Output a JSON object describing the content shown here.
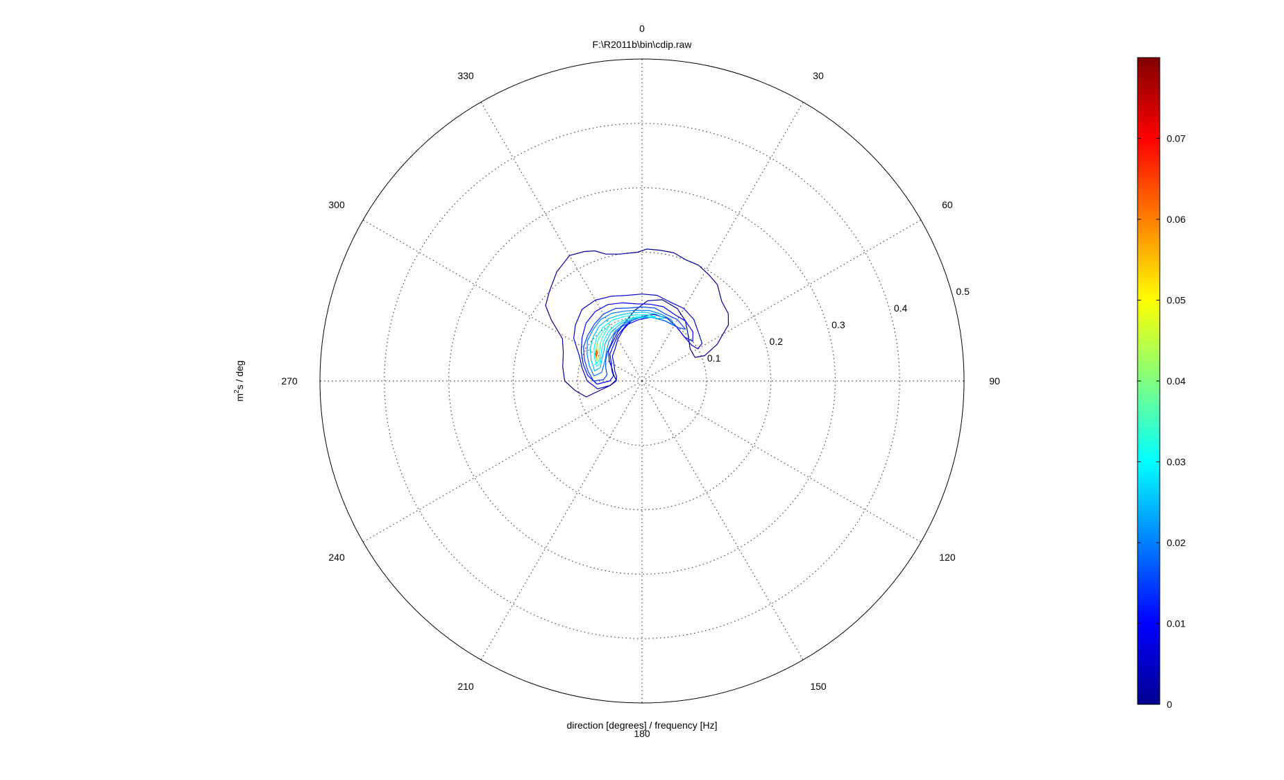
{
  "chart_data": {
    "type": "polar_contour",
    "title": "F:\\R2011b\\bin\\cdip.raw",
    "xlabel": "direction [degrees] / frequency [Hz]",
    "ylabel_base": "m",
    "ylabel_sup": "2",
    "ylabel_rest": "s / deg",
    "angle_labels": [
      "0",
      "30",
      "60",
      "90",
      "120",
      "150",
      "180",
      "210",
      "240",
      "270",
      "300",
      "330"
    ],
    "angle_ticks_deg": [
      0,
      30,
      60,
      90,
      120,
      150,
      180,
      210,
      240,
      270,
      300,
      330
    ],
    "radial_ticks": [
      0.1,
      0.2,
      0.3,
      0.4,
      0.5
    ],
    "radial_labels": [
      "0.1",
      "0.2",
      "0.3",
      "0.4",
      "0.5"
    ],
    "rlim": [
      0,
      0.5
    ],
    "angle_zero": "top",
    "angle_direction": "clockwise",
    "grid": true,
    "colorbar": {
      "ticks": [
        0,
        0.01,
        0.02,
        0.03,
        0.04,
        0.05,
        0.06,
        0.07
      ],
      "labels": [
        "0",
        "0.01",
        "0.02",
        "0.03",
        "0.04",
        "0.05",
        "0.06",
        "0.07"
      ],
      "range": [
        0,
        0.08
      ],
      "colormap": "jet",
      "placement": "right"
    },
    "contour_levels": [
      0.002,
      0.006,
      0.01,
      0.015,
      0.02,
      0.025,
      0.03,
      0.035,
      0.045,
      0.055,
      0.065
    ],
    "peak": {
      "direction_deg": 300,
      "frequency_hz": 0.085,
      "value": 0.079
    },
    "contours": [
      {
        "level": 0.002,
        "points": [
          [
            254,
            0.09
          ],
          [
            262,
            0.105
          ],
          [
            270,
            0.12
          ],
          [
            280,
            0.125
          ],
          [
            290,
            0.13
          ],
          [
            298,
            0.14
          ],
          [
            304,
            0.17
          ],
          [
            308,
            0.19
          ],
          [
            314,
            0.2
          ],
          [
            322,
            0.215
          ],
          [
            330,
            0.225
          ],
          [
            336,
            0.22
          ],
          [
            340,
            0.215
          ],
          [
            344,
            0.205
          ],
          [
            350,
            0.2
          ],
          [
            358,
            0.2
          ],
          [
            2,
            0.205
          ],
          [
            8,
            0.205
          ],
          [
            14,
            0.205
          ],
          [
            20,
            0.2
          ],
          [
            26,
            0.2
          ],
          [
            32,
            0.195
          ],
          [
            38,
            0.19
          ],
          [
            45,
            0.175
          ],
          [
            52,
            0.17
          ],
          [
            57,
            0.16
          ],
          [
            60,
            0.145
          ],
          [
            64,
            0.13
          ],
          [
            68,
            0.105
          ],
          [
            66,
            0.09
          ],
          [
            56,
            0.09
          ],
          [
            46,
            0.1
          ],
          [
            36,
            0.115
          ],
          [
            26,
            0.125
          ],
          [
            14,
            0.13
          ],
          [
            4,
            0.125
          ],
          [
            354,
            0.11
          ],
          [
            344,
            0.095
          ],
          [
            334,
            0.085
          ],
          [
            322,
            0.075
          ],
          [
            312,
            0.07
          ],
          [
            302,
            0.06
          ],
          [
            292,
            0.05
          ],
          [
            282,
            0.045
          ],
          [
            272,
            0.04
          ],
          [
            262,
            0.05
          ],
          [
            254,
            0.09
          ]
        ]
      },
      {
        "level": 0.006,
        "points": [
          [
            260,
            0.07
          ],
          [
            270,
            0.085
          ],
          [
            282,
            0.095
          ],
          [
            292,
            0.105
          ],
          [
            302,
            0.125
          ],
          [
            310,
            0.135
          ],
          [
            320,
            0.145
          ],
          [
            330,
            0.145
          ],
          [
            340,
            0.14
          ],
          [
            350,
            0.135
          ],
          [
            0,
            0.135
          ],
          [
            10,
            0.135
          ],
          [
            20,
            0.13
          ],
          [
            30,
            0.13
          ],
          [
            40,
            0.125
          ],
          [
            50,
            0.115
          ],
          [
            58,
            0.11
          ],
          [
            60,
            0.1
          ],
          [
            54,
            0.095
          ],
          [
            44,
            0.095
          ],
          [
            32,
            0.1
          ],
          [
            22,
            0.105
          ],
          [
            10,
            0.105
          ],
          [
            0,
            0.1
          ],
          [
            350,
            0.095
          ],
          [
            340,
            0.085
          ],
          [
            330,
            0.075
          ],
          [
            320,
            0.065
          ],
          [
            310,
            0.06
          ],
          [
            300,
            0.05
          ],
          [
            290,
            0.045
          ],
          [
            280,
            0.04
          ],
          [
            270,
            0.04
          ],
          [
            262,
            0.05
          ],
          [
            260,
            0.07
          ]
        ]
      },
      {
        "level": 0.01,
        "points": [
          [
            266,
            0.07
          ],
          [
            276,
            0.085
          ],
          [
            286,
            0.095
          ],
          [
            296,
            0.105
          ],
          [
            306,
            0.115
          ],
          [
            316,
            0.125
          ],
          [
            326,
            0.13
          ],
          [
            336,
            0.13
          ],
          [
            346,
            0.125
          ],
          [
            356,
            0.12
          ],
          [
            6,
            0.12
          ],
          [
            16,
            0.12
          ],
          [
            26,
            0.115
          ],
          [
            36,
            0.115
          ],
          [
            46,
            0.11
          ],
          [
            52,
            0.1
          ],
          [
            44,
            0.095
          ],
          [
            32,
            0.1
          ],
          [
            20,
            0.1
          ],
          [
            8,
            0.1
          ],
          [
            356,
            0.095
          ],
          [
            344,
            0.09
          ],
          [
            332,
            0.08
          ],
          [
            320,
            0.07
          ],
          [
            310,
            0.065
          ],
          [
            300,
            0.055
          ],
          [
            290,
            0.05
          ],
          [
            280,
            0.045
          ],
          [
            270,
            0.05
          ],
          [
            266,
            0.07
          ]
        ]
      },
      {
        "level": 0.015,
        "points": [
          [
            270,
            0.075
          ],
          [
            280,
            0.085
          ],
          [
            290,
            0.095
          ],
          [
            300,
            0.105
          ],
          [
            310,
            0.11
          ],
          [
            320,
            0.115
          ],
          [
            330,
            0.12
          ],
          [
            340,
            0.12
          ],
          [
            350,
            0.115
          ],
          [
            0,
            0.115
          ],
          [
            10,
            0.115
          ],
          [
            20,
            0.11
          ],
          [
            30,
            0.11
          ],
          [
            40,
            0.105
          ],
          [
            34,
            0.1
          ],
          [
            22,
            0.1
          ],
          [
            10,
            0.1
          ],
          [
            0,
            0.1
          ],
          [
            350,
            0.095
          ],
          [
            340,
            0.09
          ],
          [
            330,
            0.085
          ],
          [
            320,
            0.075
          ],
          [
            310,
            0.07
          ],
          [
            300,
            0.065
          ],
          [
            290,
            0.06
          ],
          [
            280,
            0.055
          ],
          [
            272,
            0.06
          ],
          [
            270,
            0.075
          ]
        ]
      },
      {
        "level": 0.02,
        "points": [
          [
            276,
            0.075
          ],
          [
            286,
            0.085
          ],
          [
            296,
            0.095
          ],
          [
            306,
            0.105
          ],
          [
            316,
            0.11
          ],
          [
            326,
            0.115
          ],
          [
            336,
            0.115
          ],
          [
            346,
            0.112
          ],
          [
            356,
            0.11
          ],
          [
            6,
            0.11
          ],
          [
            16,
            0.108
          ],
          [
            26,
            0.105
          ],
          [
            30,
            0.1
          ],
          [
            20,
            0.1
          ],
          [
            8,
            0.1
          ],
          [
            356,
            0.098
          ],
          [
            344,
            0.094
          ],
          [
            332,
            0.088
          ],
          [
            320,
            0.08
          ],
          [
            310,
            0.072
          ],
          [
            300,
            0.066
          ],
          [
            290,
            0.064
          ],
          [
            282,
            0.064
          ],
          [
            276,
            0.075
          ]
        ]
      },
      {
        "level": 0.025,
        "points": [
          [
            282,
            0.075
          ],
          [
            292,
            0.085
          ],
          [
            302,
            0.095
          ],
          [
            312,
            0.102
          ],
          [
            322,
            0.108
          ],
          [
            332,
            0.11
          ],
          [
            342,
            0.108
          ],
          [
            352,
            0.107
          ],
          [
            2,
            0.107
          ],
          [
            12,
            0.106
          ],
          [
            20,
            0.104
          ],
          [
            14,
            0.1
          ],
          [
            4,
            0.1
          ],
          [
            352,
            0.098
          ],
          [
            340,
            0.095
          ],
          [
            328,
            0.09
          ],
          [
            316,
            0.082
          ],
          [
            306,
            0.074
          ],
          [
            296,
            0.07
          ],
          [
            288,
            0.068
          ],
          [
            282,
            0.075
          ]
        ]
      },
      {
        "level": 0.03,
        "points": [
          [
            288,
            0.074
          ],
          [
            296,
            0.082
          ],
          [
            304,
            0.09
          ],
          [
            314,
            0.098
          ],
          [
            324,
            0.103
          ],
          [
            334,
            0.105
          ],
          [
            344,
            0.104
          ],
          [
            354,
            0.103
          ],
          [
            4,
            0.103
          ],
          [
            12,
            0.102
          ],
          [
            6,
            0.1
          ],
          [
            356,
            0.1
          ],
          [
            346,
            0.099
          ],
          [
            336,
            0.097
          ],
          [
            326,
            0.093
          ],
          [
            316,
            0.086
          ],
          [
            306,
            0.078
          ],
          [
            298,
            0.073
          ],
          [
            292,
            0.071
          ],
          [
            288,
            0.074
          ]
        ]
      },
      {
        "level": 0.035,
        "points": [
          [
            291,
            0.075
          ],
          [
            298,
            0.081
          ],
          [
            306,
            0.088
          ],
          [
            314,
            0.094
          ],
          [
            322,
            0.098
          ],
          [
            330,
            0.1
          ],
          [
            320,
            0.093
          ],
          [
            312,
            0.087
          ],
          [
            304,
            0.08
          ],
          [
            297,
            0.074
          ],
          [
            291,
            0.075
          ]
        ]
      },
      {
        "level": 0.045,
        "points": [
          [
            294,
            0.077
          ],
          [
            299,
            0.082
          ],
          [
            305,
            0.087
          ],
          [
            310,
            0.09
          ],
          [
            306,
            0.084
          ],
          [
            300,
            0.079
          ],
          [
            294,
            0.077
          ]
        ]
      },
      {
        "level": 0.055,
        "points": [
          [
            296,
            0.079
          ],
          [
            300,
            0.083
          ],
          [
            305,
            0.086
          ],
          [
            302,
            0.082
          ],
          [
            296,
            0.079
          ]
        ]
      },
      {
        "level": 0.065,
        "points": [
          [
            298,
            0.081
          ],
          [
            301,
            0.084
          ],
          [
            304,
            0.085
          ],
          [
            302,
            0.082
          ],
          [
            298,
            0.081
          ]
        ]
      }
    ]
  }
}
